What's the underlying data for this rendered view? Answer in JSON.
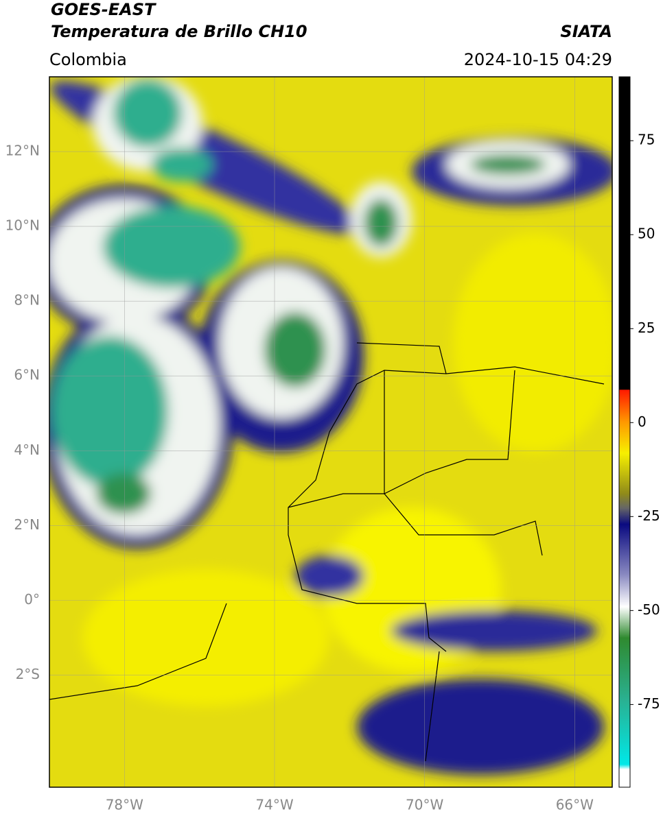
{
  "header": {
    "line1": "GOES-EAST",
    "line2": "Temperatura de Brillo CH10",
    "region": "Colombia",
    "source": "SIATA",
    "datetime": "2024-10-15 04:29"
  },
  "map": {
    "xlim": [
      -80,
      -65
    ],
    "ylim": [
      -5,
      14
    ],
    "grid": true,
    "xticks": [
      {
        "value": -78,
        "label": "78°W"
      },
      {
        "value": -74,
        "label": "74°W"
      },
      {
        "value": -70,
        "label": "70°W"
      },
      {
        "value": -66,
        "label": "66°W"
      }
    ],
    "yticks": [
      {
        "value": 12,
        "label": "12°N"
      },
      {
        "value": 10,
        "label": "10°N"
      },
      {
        "value": 8,
        "label": "8°N"
      },
      {
        "value": 6,
        "label": "6°N"
      },
      {
        "value": 4,
        "label": "4°N"
      },
      {
        "value": 2,
        "label": "2°N"
      },
      {
        "value": 0,
        "label": "0°"
      },
      {
        "value": -2,
        "label": "2°S"
      }
    ]
  },
  "colorbar": {
    "lim": [
      -97,
      92
    ],
    "ticks": [
      75,
      50,
      25,
      0,
      -25,
      -50,
      -75
    ]
  }
}
